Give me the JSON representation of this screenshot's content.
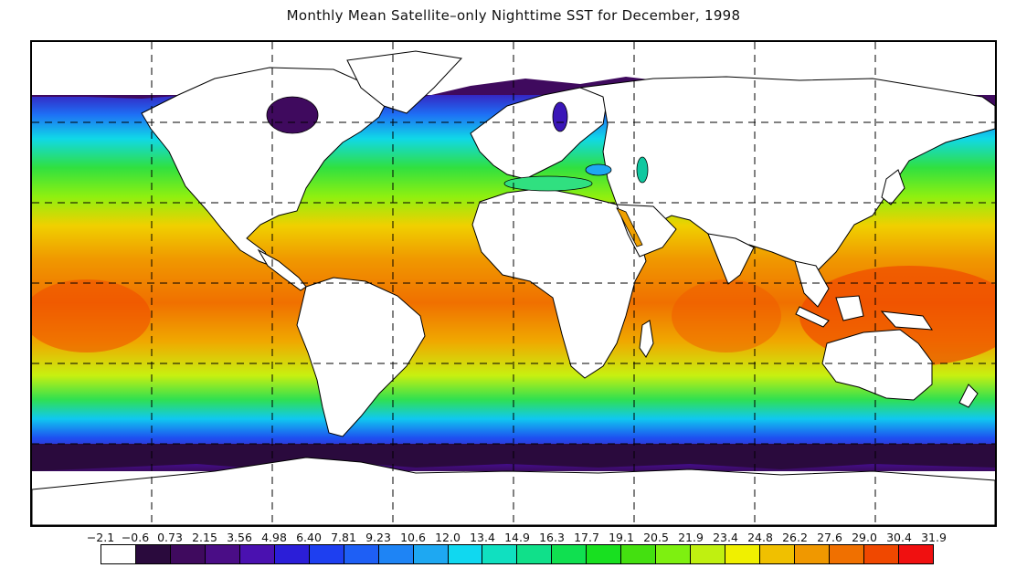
{
  "title": "Monthly Mean Satellite–only Nighttime SST for December, 1998",
  "legend": {
    "labels": [
      "−2.1",
      "−0.6",
      "0.73",
      "2.15",
      "3.56",
      "4.98",
      "6.40",
      "7.81",
      "9.23",
      "10.6",
      "12.0",
      "13.4",
      "14.9",
      "16.3",
      "17.7",
      "19.1",
      "20.5",
      "21.9",
      "23.4",
      "24.8",
      "26.2",
      "27.6",
      "29.0",
      "30.4",
      "31.9"
    ],
    "colors": [
      "#ffffff",
      "#2a0a3d",
      "#3f0a5e",
      "#4a0d86",
      "#4a11b0",
      "#2b1ed8",
      "#1e3ff0",
      "#1e5ff5",
      "#1e84f5",
      "#1ea8f2",
      "#10d8f0",
      "#10e0c0",
      "#10e08a",
      "#10e050",
      "#18e020",
      "#44e010",
      "#7ef010",
      "#c0f010",
      "#f0f000",
      "#f0c000",
      "#f09800",
      "#f07000",
      "#f04800",
      "#f01010"
    ]
  },
  "chart_data": {
    "type": "heatmap",
    "title": "Monthly Mean Satellite–only Nighttime SST for December, 1998",
    "colorbar_ticks": [
      -2.1,
      -0.6,
      0.73,
      2.15,
      3.56,
      4.98,
      6.4,
      7.81,
      9.23,
      10.6,
      12.0,
      13.4,
      14.9,
      16.3,
      17.7,
      19.1,
      20.5,
      21.9,
      23.4,
      24.8,
      26.2,
      27.6,
      29.0,
      30.4,
      31.9
    ],
    "grid": "dashed"
  }
}
